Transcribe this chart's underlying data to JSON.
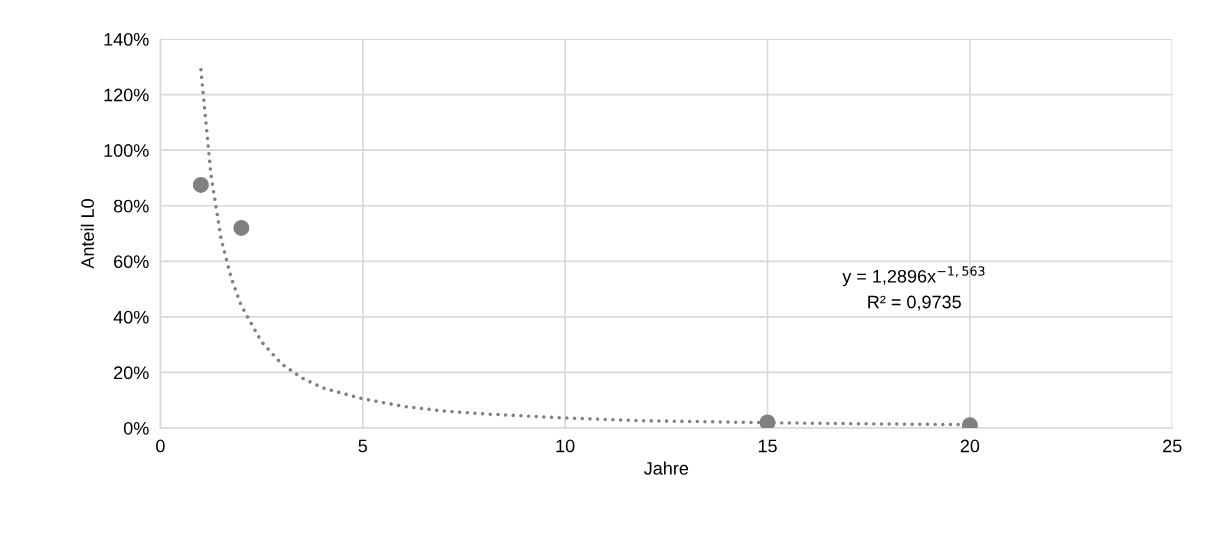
{
  "chart_data": {
    "type": "scatter",
    "xlabel": "Jahre",
    "ylabel": "Anteil L0",
    "series": [
      {
        "color": "#808080",
        "marker": "circle",
        "x": [
          1,
          2,
          15,
          20
        ],
        "values": [
          87.5,
          72,
          2,
          1
        ]
      },
      {
        "type": "line",
        "color": "#808080",
        "line_style": "dotted",
        "marker": "none",
        "x": [
          1,
          1.25,
          1.5,
          1.75,
          2,
          2.5,
          3,
          3.5,
          4,
          5,
          6,
          7,
          8,
          10,
          12,
          15,
          17.5,
          20
        ],
        "values": [
          129,
          91,
          68,
          54,
          44,
          31,
          23,
          18,
          14.5,
          10.5,
          7.8,
          6.1,
          5.1,
          3.6,
          2.6,
          1.9,
          1.5,
          1.2
        ]
      }
    ],
    "xlim": [
      0,
      25
    ],
    "xticks": [
      0,
      5,
      10,
      15,
      20,
      25
    ],
    "ylim": [
      0,
      140
    ],
    "yticks": [
      {
        "value": 0,
        "label": "0%"
      },
      {
        "value": 20,
        "label": "20%"
      },
      {
        "value": 40,
        "label": "40%"
      },
      {
        "value": 60,
        "label": "60%"
      },
      {
        "value": 80,
        "label": "80%"
      },
      {
        "value": 100,
        "label": "100%"
      },
      {
        "value": 120,
        "label": "120%"
      },
      {
        "value": 140,
        "label": "140%"
      }
    ],
    "grid": true,
    "annotations": [
      "y = 1,2896x$^{−1,563}$",
      "R² = 0,9735"
    ]
  }
}
